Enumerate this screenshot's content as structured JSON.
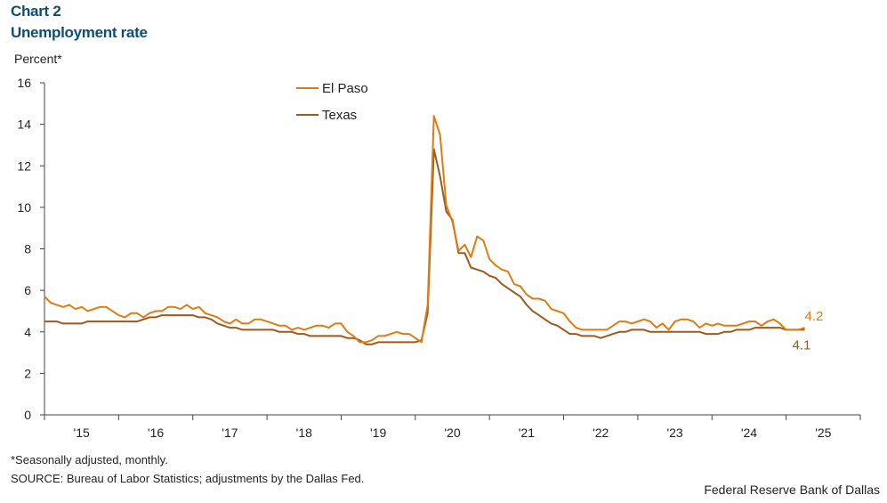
{
  "header": {
    "chart_label": "Chart 2",
    "title": "Unemployment rate",
    "y_unit": "Percent*"
  },
  "footer": {
    "footnote": "*Seasonally adjusted, monthly.",
    "source": "SOURCE: Bureau of Labor Statistics; adjustments by the Dallas Fed.",
    "credit": "Federal Reserve Bank of Dallas"
  },
  "colors": {
    "el_paso": "#e07b12",
    "texas": "#9c5a1e",
    "axis": "#444444",
    "title": "#0b4f79"
  },
  "chart_data": {
    "type": "line",
    "title": "Unemployment rate",
    "ylabel": "Percent*",
    "xlabel": "",
    "ylim": [
      0,
      16
    ],
    "yticks": [
      0,
      2,
      4,
      6,
      8,
      10,
      12,
      14,
      16
    ],
    "xlim": [
      2015,
      2026
    ],
    "xtick_labels": [
      "'15",
      "'16",
      "'17",
      "'18",
      "'19",
      "'20",
      "'21",
      "'22",
      "'23",
      "'24",
      "'25"
    ],
    "grid": false,
    "legend_position": "top-center",
    "series": [
      {
        "name": "El Paso",
        "x": [
          2015.0,
          2015.083,
          2015.167,
          2015.25,
          2015.333,
          2015.417,
          2015.5,
          2015.583,
          2015.667,
          2015.75,
          2015.833,
          2015.917,
          2016.0,
          2016.083,
          2016.167,
          2016.25,
          2016.333,
          2016.417,
          2016.5,
          2016.583,
          2016.667,
          2016.75,
          2016.833,
          2016.917,
          2017.0,
          2017.083,
          2017.167,
          2017.25,
          2017.333,
          2017.417,
          2017.5,
          2017.583,
          2017.667,
          2017.75,
          2017.833,
          2017.917,
          2018.0,
          2018.083,
          2018.167,
          2018.25,
          2018.333,
          2018.417,
          2018.5,
          2018.583,
          2018.667,
          2018.75,
          2018.833,
          2018.917,
          2019.0,
          2019.083,
          2019.167,
          2019.25,
          2019.333,
          2019.417,
          2019.5,
          2019.583,
          2019.667,
          2019.75,
          2019.833,
          2019.917,
          2020.0,
          2020.083,
          2020.167,
          2020.25,
          2020.333,
          2020.417,
          2020.5,
          2020.583,
          2020.667,
          2020.75,
          2020.833,
          2020.917,
          2021.0,
          2021.083,
          2021.167,
          2021.25,
          2021.333,
          2021.417,
          2021.5,
          2021.583,
          2021.667,
          2021.75,
          2021.833,
          2021.917,
          2022.0,
          2022.083,
          2022.167,
          2022.25,
          2022.333,
          2022.417,
          2022.5,
          2022.583,
          2022.667,
          2022.75,
          2022.833,
          2022.917,
          2023.0,
          2023.083,
          2023.167,
          2023.25,
          2023.333,
          2023.417,
          2023.5,
          2023.583,
          2023.667,
          2023.75,
          2023.833,
          2023.917,
          2024.0,
          2024.083,
          2024.167,
          2024.25,
          2024.333,
          2024.417,
          2024.5,
          2024.583,
          2024.667,
          2024.75,
          2024.833,
          2024.917,
          2025.0,
          2025.083,
          2025.167,
          2025.25
        ],
        "values": [
          5.7,
          5.4,
          5.3,
          5.2,
          5.3,
          5.1,
          5.2,
          5.0,
          5.1,
          5.2,
          5.2,
          5.0,
          4.8,
          4.7,
          4.9,
          4.9,
          4.7,
          4.9,
          5.0,
          5.0,
          5.2,
          5.2,
          5.1,
          5.3,
          5.1,
          5.2,
          4.9,
          4.8,
          4.7,
          4.5,
          4.4,
          4.6,
          4.4,
          4.4,
          4.6,
          4.6,
          4.5,
          4.4,
          4.3,
          4.3,
          4.1,
          4.2,
          4.1,
          4.2,
          4.3,
          4.3,
          4.2,
          4.4,
          4.4,
          4.0,
          3.8,
          3.5,
          3.5,
          3.6,
          3.8,
          3.8,
          3.9,
          4.0,
          3.9,
          3.9,
          3.7,
          3.5,
          5.3,
          14.4,
          13.5,
          10.1,
          9.3,
          7.9,
          8.2,
          7.6,
          8.6,
          8.4,
          7.5,
          7.2,
          7.0,
          6.9,
          6.3,
          6.2,
          5.8,
          5.6,
          5.6,
          5.5,
          5.1,
          5.0,
          4.9,
          4.5,
          4.2,
          4.1,
          4.1,
          4.1,
          4.1,
          4.1,
          4.3,
          4.5,
          4.5,
          4.4,
          4.5,
          4.6,
          4.5,
          4.2,
          4.4,
          4.1,
          4.5,
          4.6,
          4.6,
          4.5,
          4.2,
          4.4,
          4.3,
          4.4,
          4.3,
          4.3,
          4.3,
          4.4,
          4.5,
          4.5,
          4.3,
          4.5,
          4.6,
          4.4,
          4.1,
          4.1,
          4.1,
          4.2
        ]
      },
      {
        "name": "Texas",
        "x": [
          2015.0,
          2015.083,
          2015.167,
          2015.25,
          2015.333,
          2015.417,
          2015.5,
          2015.583,
          2015.667,
          2015.75,
          2015.833,
          2015.917,
          2016.0,
          2016.083,
          2016.167,
          2016.25,
          2016.333,
          2016.417,
          2016.5,
          2016.583,
          2016.667,
          2016.75,
          2016.833,
          2016.917,
          2017.0,
          2017.083,
          2017.167,
          2017.25,
          2017.333,
          2017.417,
          2017.5,
          2017.583,
          2017.667,
          2017.75,
          2017.833,
          2017.917,
          2018.0,
          2018.083,
          2018.167,
          2018.25,
          2018.333,
          2018.417,
          2018.5,
          2018.583,
          2018.667,
          2018.75,
          2018.833,
          2018.917,
          2019.0,
          2019.083,
          2019.167,
          2019.25,
          2019.333,
          2019.417,
          2019.5,
          2019.583,
          2019.667,
          2019.75,
          2019.833,
          2019.917,
          2020.0,
          2020.083,
          2020.167,
          2020.25,
          2020.333,
          2020.417,
          2020.5,
          2020.583,
          2020.667,
          2020.75,
          2020.833,
          2020.917,
          2021.0,
          2021.083,
          2021.167,
          2021.25,
          2021.333,
          2021.417,
          2021.5,
          2021.583,
          2021.667,
          2021.75,
          2021.833,
          2021.917,
          2022.0,
          2022.083,
          2022.167,
          2022.25,
          2022.333,
          2022.417,
          2022.5,
          2022.583,
          2022.667,
          2022.75,
          2022.833,
          2022.917,
          2023.0,
          2023.083,
          2023.167,
          2023.25,
          2023.333,
          2023.417,
          2023.5,
          2023.583,
          2023.667,
          2023.75,
          2023.833,
          2023.917,
          2024.0,
          2024.083,
          2024.167,
          2024.25,
          2024.333,
          2024.417,
          2024.5,
          2024.583,
          2024.667,
          2024.75,
          2024.833,
          2024.917,
          2025.0,
          2025.083,
          2025.167,
          2025.25
        ],
        "values": [
          4.5,
          4.5,
          4.5,
          4.4,
          4.4,
          4.4,
          4.4,
          4.5,
          4.5,
          4.5,
          4.5,
          4.5,
          4.5,
          4.5,
          4.5,
          4.5,
          4.6,
          4.7,
          4.7,
          4.8,
          4.8,
          4.8,
          4.8,
          4.8,
          4.8,
          4.7,
          4.7,
          4.6,
          4.4,
          4.3,
          4.2,
          4.2,
          4.1,
          4.1,
          4.1,
          4.1,
          4.1,
          4.1,
          4.0,
          4.0,
          4.0,
          3.9,
          3.9,
          3.8,
          3.8,
          3.8,
          3.8,
          3.8,
          3.8,
          3.7,
          3.7,
          3.6,
          3.4,
          3.4,
          3.5,
          3.5,
          3.5,
          3.5,
          3.5,
          3.5,
          3.5,
          3.6,
          4.9,
          12.8,
          11.5,
          9.8,
          9.4,
          7.8,
          7.8,
          7.1,
          7.0,
          6.9,
          6.7,
          6.6,
          6.3,
          6.1,
          5.9,
          5.7,
          5.3,
          5.0,
          4.8,
          4.6,
          4.4,
          4.3,
          4.1,
          3.9,
          3.9,
          3.8,
          3.8,
          3.8,
          3.7,
          3.8,
          3.9,
          4.0,
          4.0,
          4.1,
          4.1,
          4.1,
          4.0,
          4.0,
          4.0,
          4.0,
          4.0,
          4.0,
          4.0,
          4.0,
          4.0,
          3.9,
          3.9,
          3.9,
          4.0,
          4.0,
          4.1,
          4.1,
          4.1,
          4.2,
          4.2,
          4.2,
          4.2,
          4.2,
          4.1,
          4.1,
          4.1,
          4.1
        ]
      }
    ],
    "end_labels": [
      {
        "series": "El Paso",
        "text": "4.2"
      },
      {
        "series": "Texas",
        "text": "4.1"
      }
    ]
  }
}
